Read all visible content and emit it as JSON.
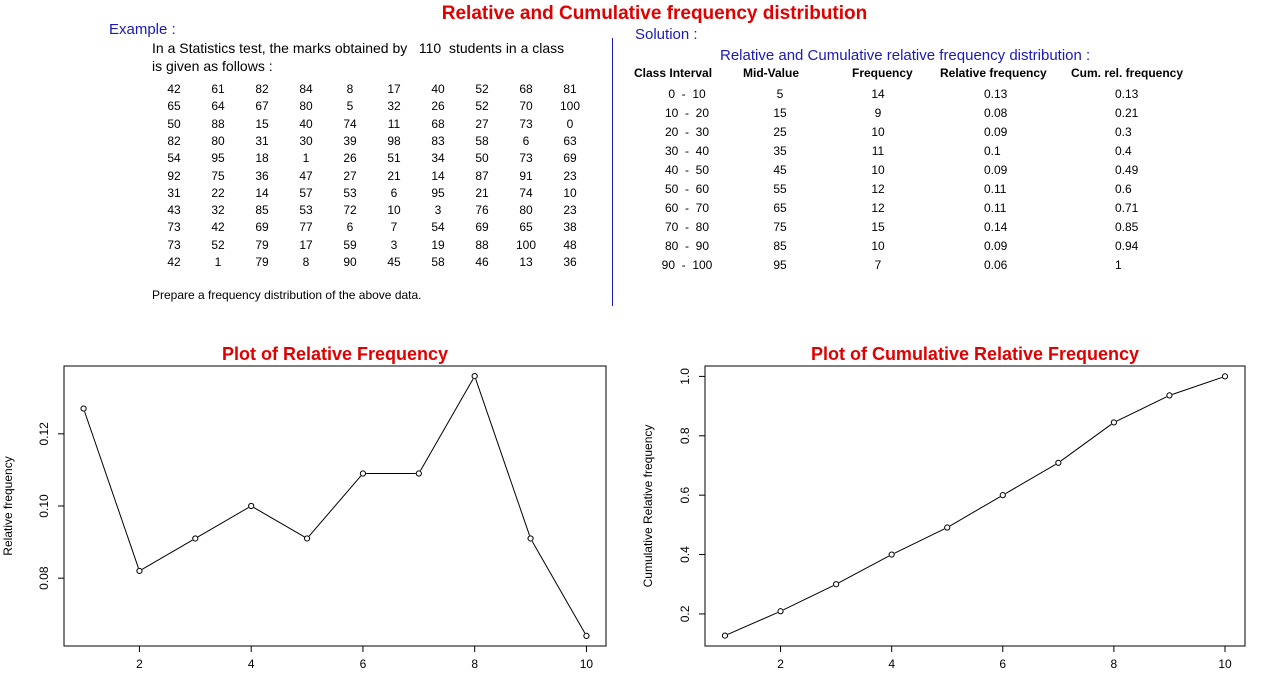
{
  "title": "Relative and Cumulative frequency distribution",
  "example": {
    "label": "Example :",
    "text_line1": "In a Statistics test, the marks obtained by   110  students in a class",
    "text_line2": "is given as follows :",
    "data": [
      [
        42,
        61,
        82,
        84,
        8,
        17,
        40,
        52,
        68,
        81
      ],
      [
        65,
        64,
        67,
        80,
        5,
        32,
        26,
        52,
        70,
        100
      ],
      [
        50,
        88,
        15,
        40,
        74,
        11,
        68,
        27,
        73,
        0
      ],
      [
        82,
        80,
        31,
        30,
        39,
        98,
        83,
        58,
        6,
        63
      ],
      [
        54,
        95,
        18,
        1,
        26,
        51,
        34,
        50,
        73,
        69
      ],
      [
        92,
        75,
        36,
        47,
        27,
        21,
        14,
        87,
        91,
        23
      ],
      [
        31,
        22,
        14,
        57,
        53,
        6,
        95,
        21,
        74,
        10
      ],
      [
        43,
        32,
        85,
        53,
        72,
        10,
        3,
        76,
        80,
        23
      ],
      [
        73,
        42,
        69,
        77,
        6,
        7,
        54,
        69,
        65,
        38
      ],
      [
        73,
        52,
        79,
        17,
        59,
        3,
        19,
        88,
        100,
        48
      ],
      [
        42,
        1,
        79,
        8,
        90,
        45,
        58,
        46,
        13,
        36
      ]
    ],
    "prepare": "Prepare a frequency distribution of the above data."
  },
  "solution": {
    "label": "Solution :",
    "table_title": "Relative and Cumulative relative frequency distribution :",
    "headers": [
      "Class Interval",
      "Mid-Value",
      "Frequency",
      "Relative frequency",
      "Cum. rel. frequency"
    ],
    "rows": [
      [
        "0  -  10",
        "5",
        "14",
        "0.13",
        "0.13"
      ],
      [
        "10  -  20",
        "15",
        "9",
        "0.08",
        "0.21"
      ],
      [
        "20  -  30",
        "25",
        "10",
        "0.09",
        "0.3"
      ],
      [
        "30  -  40",
        "35",
        "11",
        "0.1",
        "0.4"
      ],
      [
        "40  -  50",
        "45",
        "10",
        "0.09",
        "0.49"
      ],
      [
        "50  -  60",
        "55",
        "12",
        "0.11",
        "0.6"
      ],
      [
        "60  -  70",
        "65",
        "12",
        "0.11",
        "0.71"
      ],
      [
        "70  -  80",
        "75",
        "15",
        "0.14",
        "0.85"
      ],
      [
        "80  -  90",
        "85",
        "10",
        "0.09",
        "0.94"
      ],
      [
        "90  -  100",
        "95",
        "7",
        "0.06",
        "1"
      ]
    ]
  },
  "colors": {
    "title_red": "#e00000",
    "label_blue": "#1a1ab8"
  },
  "chart_data": [
    {
      "type": "line",
      "title": "Plot of Relative Frequency",
      "xlabel": "",
      "ylabel": "Relative frequency",
      "x": [
        1,
        2,
        3,
        4,
        5,
        6,
        7,
        8,
        9,
        10
      ],
      "values": [
        0.127,
        0.082,
        0.091,
        0.1,
        0.091,
        0.109,
        0.109,
        0.136,
        0.091,
        0.064
      ],
      "xticks": [
        2,
        4,
        6,
        8,
        10
      ],
      "xtick_labels": [
        "2",
        "4",
        "6",
        "8",
        "10"
      ],
      "yticks": [
        0.08,
        0.1,
        0.12
      ],
      "ytick_labels": [
        "0.08",
        "0.10",
        "0.12"
      ],
      "xlim": [
        0.65,
        10.35
      ],
      "ylim": [
        0.0612,
        0.1388
      ],
      "markers": "open-circle",
      "grid": false
    },
    {
      "type": "line",
      "title": "Plot of Cumulative Relative Frequency",
      "xlabel": "",
      "ylabel": "Cumulative Relative frequency",
      "x": [
        1,
        2,
        3,
        4,
        5,
        6,
        7,
        8,
        9,
        10
      ],
      "values": [
        0.127,
        0.209,
        0.3,
        0.4,
        0.491,
        0.6,
        0.709,
        0.845,
        0.936,
        1.0
      ],
      "xticks": [
        2,
        4,
        6,
        8,
        10
      ],
      "xtick_labels": [
        "2",
        "4",
        "6",
        "8",
        "10"
      ],
      "yticks": [
        0.2,
        0.4,
        0.6,
        0.8,
        1.0
      ],
      "ytick_labels": [
        "0.2",
        "0.4",
        "0.6",
        "0.8",
        "1.0"
      ],
      "xlim": [
        0.64,
        10.36
      ],
      "ylim": [
        0.092,
        1.035
      ],
      "markers": "open-circle",
      "grid": false
    }
  ]
}
